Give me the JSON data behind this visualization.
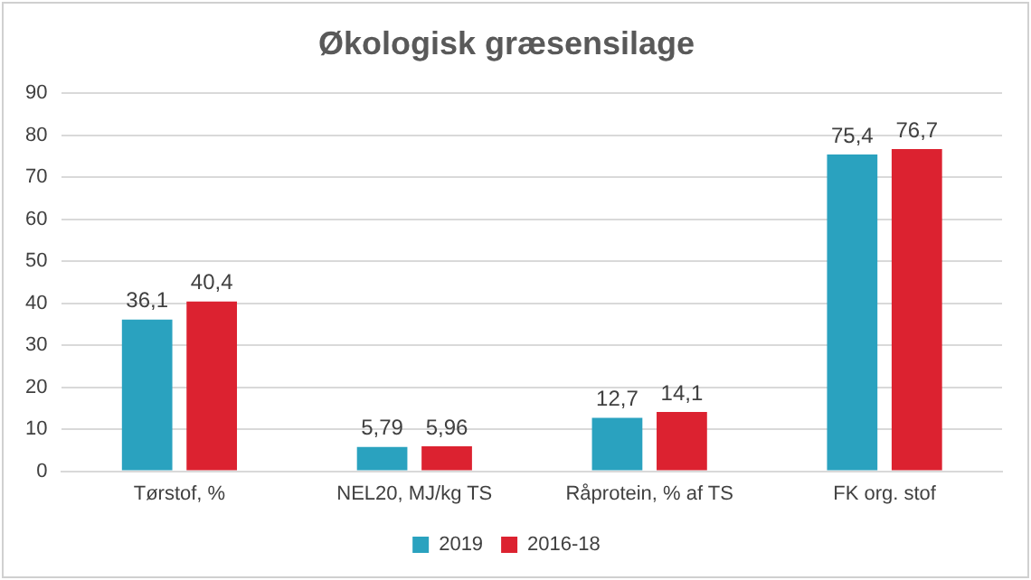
{
  "chart_data": {
    "type": "bar",
    "title": "Økologisk græsensilage",
    "categories": [
      "Tørstof, %",
      "NEL20, MJ/kg TS",
      "Råprotein, % af TS",
      "FK org. stof"
    ],
    "series": [
      {
        "name": "2019",
        "color": "#2aa2bf",
        "values": [
          36.1,
          5.79,
          12.7,
          75.4
        ],
        "value_labels": [
          "36,1",
          "5,79",
          "12,7",
          "75,4"
        ]
      },
      {
        "name": "2016-18",
        "color": "#dc2230",
        "values": [
          40.4,
          5.96,
          14.1,
          76.7
        ],
        "value_labels": [
          "40,4",
          "5,96",
          "14,1",
          "76,7"
        ]
      }
    ],
    "ylim": [
      0,
      90
    ],
    "yticks": [
      0,
      10,
      20,
      30,
      40,
      50,
      60,
      70,
      80,
      90
    ],
    "grid": "y",
    "legend": "bottom"
  }
}
